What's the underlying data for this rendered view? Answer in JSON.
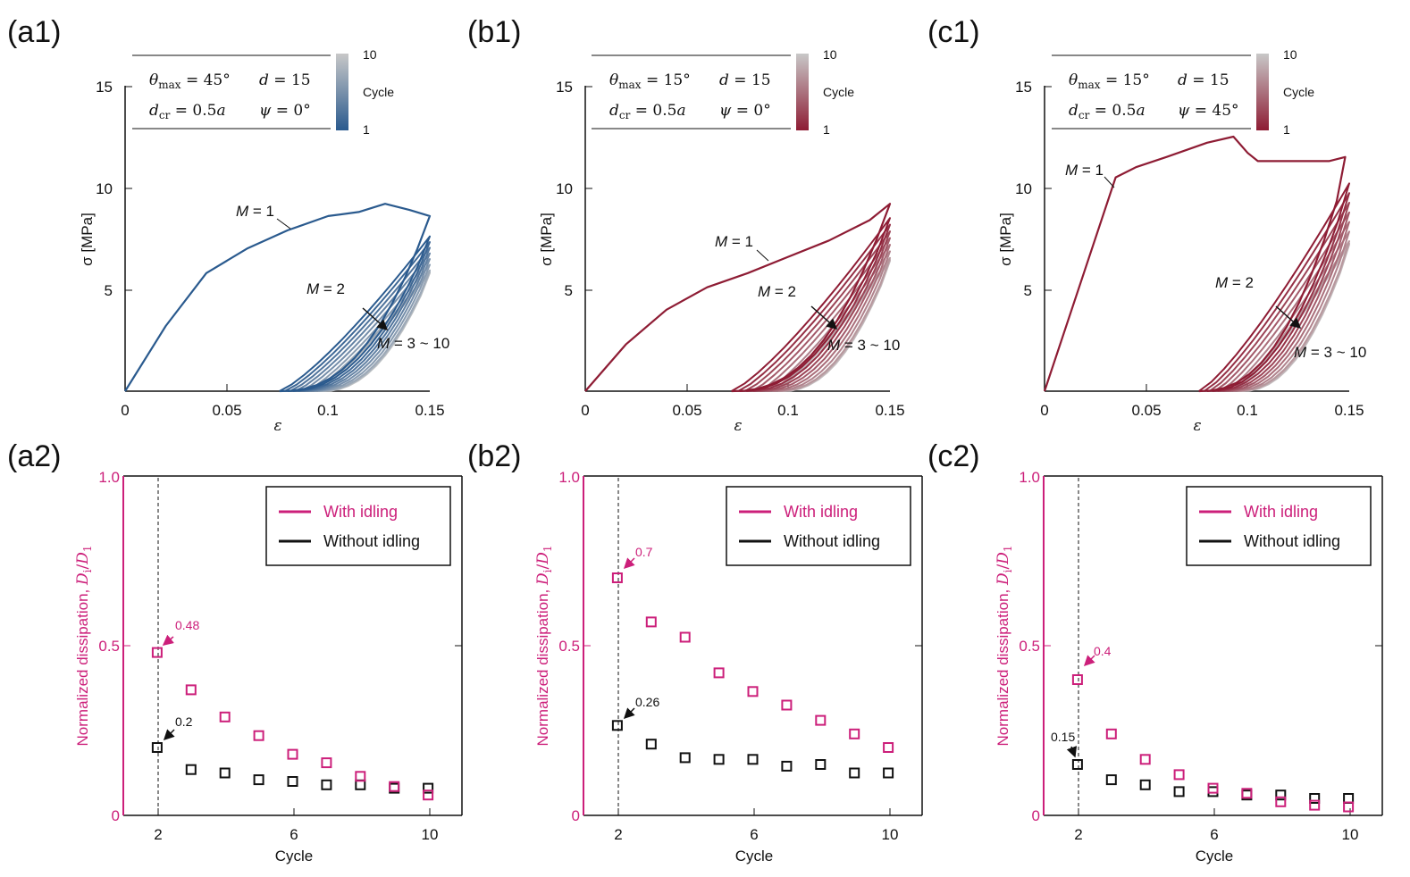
{
  "colors": {
    "blue": "#2a5a8e",
    "red": "#8e1c34",
    "magenta": "#cc1f7a",
    "black": "#111111",
    "gray": "#c8c8c8"
  },
  "top_common": {
    "xlabel": "ε",
    "ylabel": "σ [MPa]",
    "xticks": [
      "0",
      "0.05",
      "0.1",
      "0.15"
    ],
    "yticks": [
      "5",
      "10",
      "15"
    ],
    "colorbar_top": "10",
    "colorbar_mid": "Cycle",
    "colorbar_bottom": "1"
  },
  "bottom_common": {
    "xlabel": "Cycle",
    "ylabel_text": "Normalized dissipation, ",
    "ylabel_math": "D",
    "xticks": [
      "2",
      "6",
      "10"
    ],
    "yticks": [
      "0",
      "0.5",
      "1.0"
    ],
    "legend_with": "With idling",
    "legend_without": "Without idling"
  },
  "panels": {
    "a1": {
      "label": "(a1)",
      "theta": "θ",
      "theta_sub": "max",
      "theta_val": " = 45°",
      "d_text": "d",
      "d_val": " = 15",
      "dcr_text": "d",
      "dcr_sub": "cr",
      "dcr_val": " = 0.5",
      "dcr_a": "a",
      "psi_text": "ψ",
      "psi_val": " = 0°",
      "m1": "M",
      "m1_val": " = 1",
      "m2": "M",
      "m2_val": " = 2",
      "m3": "M",
      "m3_val": " = 3 ~ 10"
    },
    "b1": {
      "label": "(b1)",
      "theta": "θ",
      "theta_sub": "max",
      "theta_val": " = 15°",
      "d_text": "d",
      "d_val": " = 15",
      "dcr_text": "d",
      "dcr_sub": "cr",
      "dcr_val": " = 0.5",
      "dcr_a": "a",
      "psi_text": "ψ",
      "psi_val": " = 0°",
      "m1": "M",
      "m1_val": " = 1",
      "m2": "M",
      "m2_val": " = 2",
      "m3": "M",
      "m3_val": " = 3 ~ 10"
    },
    "c1": {
      "label": "(c1)",
      "theta": "θ",
      "theta_sub": "max",
      "theta_val": " = 15°",
      "d_text": "d",
      "d_val": " = 15",
      "dcr_text": "d",
      "dcr_sub": "cr",
      "dcr_val": " = 0.5",
      "dcr_a": "a",
      "psi_text": "ψ",
      "psi_val": " = 45°",
      "m1": "M",
      "m1_val": " = 1",
      "m2": "M",
      "m2_val": " = 2",
      "m3": "M",
      "m3_val": " = 3 ~ 10"
    },
    "a2": {
      "label": "(a2)",
      "ann_with": "0.48",
      "ann_without": "0.2"
    },
    "b2": {
      "label": "(b2)",
      "ann_with": "0.7",
      "ann_without": "0.26"
    },
    "c2": {
      "label": "(c2)",
      "ann_with": "0.4",
      "ann_without": "0.15"
    }
  },
  "chart_data": [
    {
      "id": "a1",
      "type": "line",
      "xlabel": "ε",
      "ylabel": "σ [MPa]",
      "xlim": [
        0,
        0.15
      ],
      "ylim": [
        0,
        15
      ],
      "params": {
        "theta_max": "45°",
        "d": 15,
        "d_cr": "0.5a",
        "psi": "0°"
      },
      "series": [
        {
          "name": "M = 1",
          "x": [
            0,
            0.02,
            0.04,
            0.06,
            0.08,
            0.1,
            0.115,
            0.128,
            0.14,
            0.15
          ],
          "y": [
            0,
            3.2,
            5.8,
            7.0,
            7.9,
            8.6,
            8.8,
            9.2,
            8.9,
            8.6
          ]
        },
        {
          "name": "M = 2",
          "x": [
            0.076,
            0.1,
            0.12,
            0.14,
            0.15
          ],
          "y": [
            0,
            2.0,
            4.0,
            6.2,
            7.6
          ]
        },
        {
          "name": "M = 3 ~ 10",
          "x": [
            0.085,
            0.11,
            0.13,
            0.15
          ],
          "y": [
            0,
            1.8,
            3.6,
            6.2
          ]
        }
      ]
    },
    {
      "id": "b1",
      "type": "line",
      "xlabel": "ε",
      "ylabel": "σ [MPa]",
      "xlim": [
        0,
        0.15
      ],
      "ylim": [
        0,
        15
      ],
      "params": {
        "theta_max": "15°",
        "d": 15,
        "d_cr": "0.5a",
        "psi": "0°"
      },
      "series": [
        {
          "name": "M = 1",
          "x": [
            0,
            0.02,
            0.04,
            0.06,
            0.08,
            0.1,
            0.12,
            0.14,
            0.15
          ],
          "y": [
            0,
            2.3,
            4.0,
            5.1,
            5.8,
            6.6,
            7.4,
            8.4,
            9.2
          ]
        },
        {
          "name": "M = 2",
          "x": [
            0.072,
            0.1,
            0.12,
            0.14,
            0.15
          ],
          "y": [
            0,
            2.5,
            4.6,
            7.0,
            8.5
          ]
        },
        {
          "name": "M = 3 ~ 10",
          "x": [
            0.085,
            0.11,
            0.13,
            0.15
          ],
          "y": [
            0,
            2.0,
            4.0,
            6.8
          ]
        }
      ]
    },
    {
      "id": "c1",
      "type": "line",
      "xlabel": "ε",
      "ylabel": "σ [MPa]",
      "xlim": [
        0,
        0.15
      ],
      "ylim": [
        0,
        15
      ],
      "params": {
        "theta_max": "15°",
        "d": 15,
        "d_cr": "0.5a",
        "psi": "45°"
      },
      "series": [
        {
          "name": "M = 1",
          "x": [
            0,
            0.02,
            0.035,
            0.045,
            0.06,
            0.08,
            0.093,
            0.1,
            0.105,
            0.12,
            0.14,
            0.148
          ],
          "y": [
            0,
            6.0,
            10.5,
            11.0,
            11.5,
            12.2,
            12.5,
            11.7,
            11.3,
            11.3,
            11.3,
            11.5
          ]
        },
        {
          "name": "M = 2",
          "x": [
            0.076,
            0.1,
            0.12,
            0.14,
            0.15
          ],
          "y": [
            0,
            3.0,
            5.6,
            8.4,
            10.2
          ]
        },
        {
          "name": "M = 3 ~ 10",
          "x": [
            0.085,
            0.11,
            0.13,
            0.15
          ],
          "y": [
            0,
            2.2,
            4.4,
            7.6
          ]
        }
      ]
    },
    {
      "id": "a2",
      "type": "scatter",
      "xlabel": "Cycle",
      "ylabel": "Normalized dissipation, D_i/D_1",
      "xlim": [
        1,
        11
      ],
      "ylim": [
        0,
        1
      ],
      "x": [
        2,
        3,
        4,
        5,
        6,
        7,
        8,
        9,
        10
      ],
      "series": [
        {
          "name": "With idling",
          "values": [
            0.48,
            0.37,
            0.29,
            0.235,
            0.18,
            0.155,
            0.115,
            0.085,
            0.06
          ]
        },
        {
          "name": "Without idling",
          "values": [
            0.2,
            0.135,
            0.125,
            0.105,
            0.1,
            0.09,
            0.09,
            0.08,
            0.08
          ]
        }
      ]
    },
    {
      "id": "b2",
      "type": "scatter",
      "xlabel": "Cycle",
      "ylabel": "Normalized dissipation, D_i/D_1",
      "xlim": [
        1,
        11
      ],
      "ylim": [
        0,
        1
      ],
      "x": [
        2,
        3,
        4,
        5,
        6,
        7,
        8,
        9,
        10
      ],
      "series": [
        {
          "name": "With idling",
          "values": [
            0.7,
            0.57,
            0.525,
            0.42,
            0.365,
            0.325,
            0.28,
            0.24,
            0.2
          ]
        },
        {
          "name": "Without idling",
          "values": [
            0.265,
            0.21,
            0.17,
            0.165,
            0.165,
            0.145,
            0.15,
            0.125,
            0.125
          ]
        }
      ]
    },
    {
      "id": "c2",
      "type": "scatter",
      "xlabel": "Cycle",
      "ylabel": "Normalized dissipation, D_i/D_1",
      "xlim": [
        1,
        11
      ],
      "ylim": [
        0,
        1
      ],
      "x": [
        2,
        3,
        4,
        5,
        6,
        7,
        8,
        9,
        10
      ],
      "series": [
        {
          "name": "With idling",
          "values": [
            0.4,
            0.24,
            0.165,
            0.12,
            0.08,
            0.065,
            0.04,
            0.03,
            0.025
          ]
        },
        {
          "name": "Without idling",
          "values": [
            0.15,
            0.105,
            0.09,
            0.07,
            0.07,
            0.06,
            0.06,
            0.05,
            0.05
          ]
        }
      ]
    }
  ]
}
